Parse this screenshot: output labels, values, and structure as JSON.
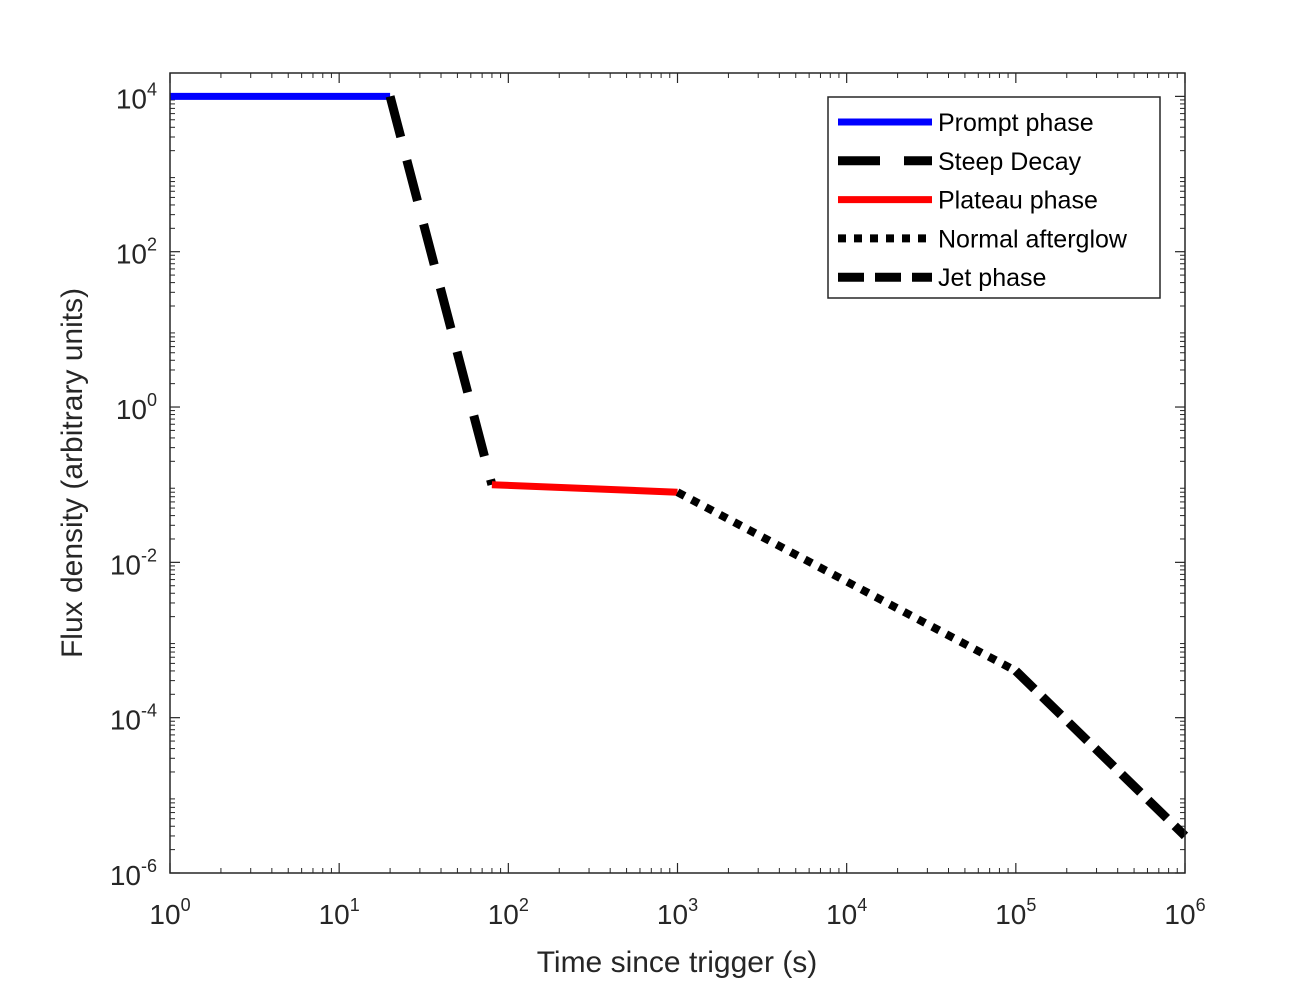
{
  "chart_data": {
    "type": "line",
    "title": "",
    "xlabel": "Time since trigger (s)",
    "ylabel": "Flux density (arbitrary units)",
    "xscale": "log",
    "yscale": "log",
    "xlim": [
      1,
      1000000
    ],
    "ylim": [
      1e-06,
      20000
    ],
    "xticks": [
      {
        "base": "10",
        "exp": "0",
        "value": 1
      },
      {
        "base": "10",
        "exp": "1",
        "value": 10
      },
      {
        "base": "10",
        "exp": "2",
        "value": 100
      },
      {
        "base": "10",
        "exp": "3",
        "value": 1000
      },
      {
        "base": "10",
        "exp": "4",
        "value": 10000
      },
      {
        "base": "10",
        "exp": "5",
        "value": 100000
      },
      {
        "base": "10",
        "exp": "6",
        "value": 1000000
      }
    ],
    "yticks": [
      {
        "base": "10",
        "exp": "-6",
        "value": 1e-06
      },
      {
        "base": "10",
        "exp": "-4",
        "value": 0.0001
      },
      {
        "base": "10",
        "exp": "-2",
        "value": 0.01
      },
      {
        "base": "10",
        "exp": "0",
        "value": 1
      },
      {
        "base": "10",
        "exp": "2",
        "value": 100
      },
      {
        "base": "10",
        "exp": "4",
        "value": 10000
      }
    ],
    "legend_position": "top-right",
    "series": [
      {
        "name": "Prompt phase",
        "color": "#0000ff",
        "style": "solid",
        "x": [
          1,
          20
        ],
        "y": [
          10000,
          10000
        ]
      },
      {
        "name": "Steep Decay",
        "color": "#000000",
        "style": "dashed",
        "x": [
          20,
          80
        ],
        "y": [
          10000,
          0.1
        ]
      },
      {
        "name": "Plateau phase",
        "color": "#ff0000",
        "style": "solid",
        "x": [
          80,
          1000
        ],
        "y": [
          0.1,
          0.08
        ]
      },
      {
        "name": "Normal afterglow",
        "color": "#000000",
        "style": "dotted",
        "x": [
          1000,
          100000
        ],
        "y": [
          0.08,
          0.0004
        ]
      },
      {
        "name": "Jet phase",
        "color": "#000000",
        "style": "dashdense",
        "x": [
          100000,
          1000000
        ],
        "y": [
          0.0004,
          3e-06
        ]
      }
    ]
  }
}
